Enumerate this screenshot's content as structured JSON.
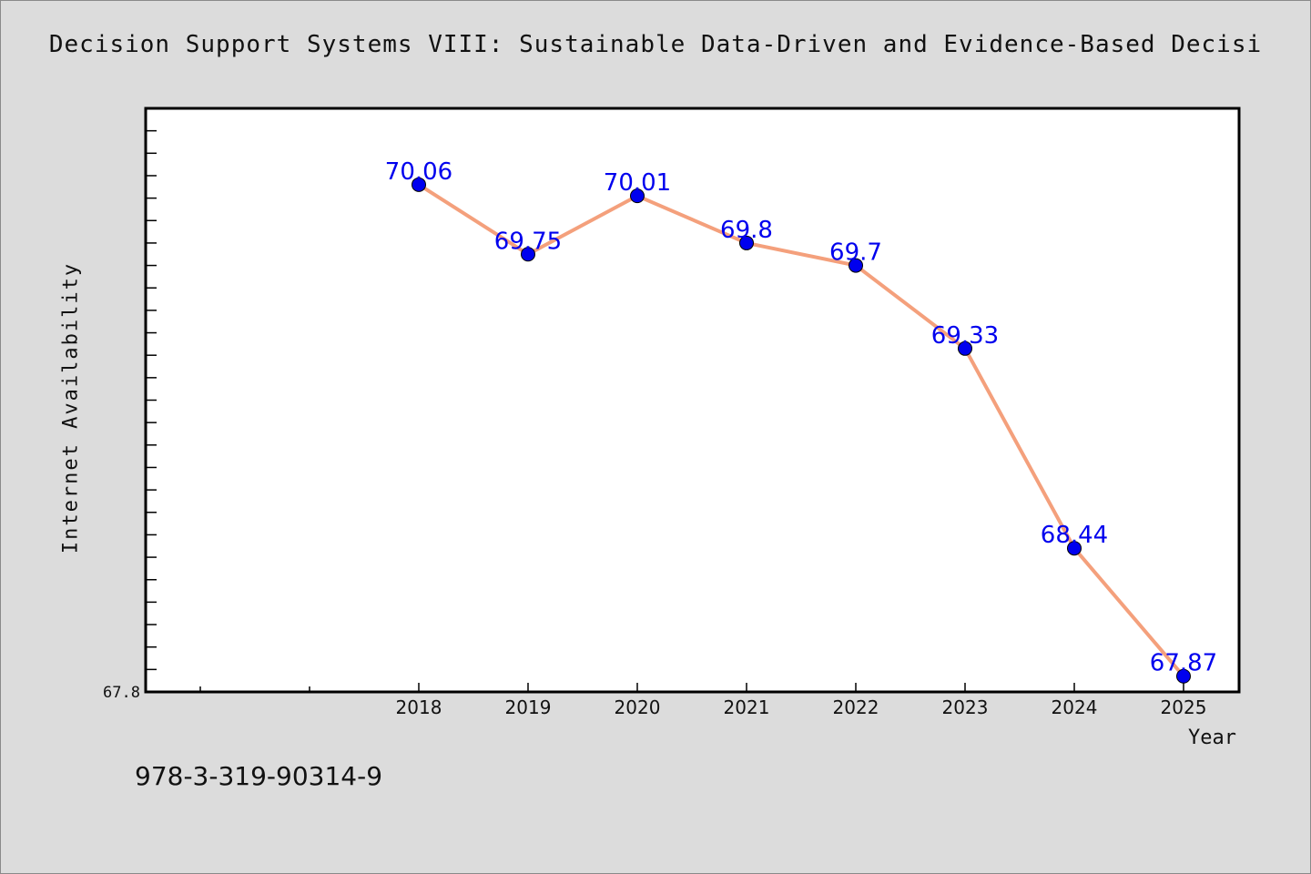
{
  "chart_data": {
    "type": "line",
    "title": "Decision Support Systems VIII: Sustainable Data-Driven and Evidence-Based Decisi",
    "xlabel": "Year",
    "ylabel": "Internet Availability",
    "x": [
      "2018",
      "2019",
      "2020",
      "2021",
      "2022",
      "2023",
      "2024",
      "2025"
    ],
    "series": [
      {
        "values": [
          70.06,
          69.75,
          70.01,
          69.8,
          69.7,
          69.33,
          68.44,
          67.87
        ]
      }
    ],
    "data_labels": [
      "70.06",
      "69.75",
      "70.01",
      "69.8",
      "69.7",
      "69.33",
      "68.44",
      "67.87"
    ],
    "y_tick_labels": [
      "67.8"
    ],
    "ylim": [
      67.8,
      70.4
    ],
    "grid": false,
    "colors": {
      "line": "#f4a07c",
      "marker": "#0000ee",
      "label": "#0000ee",
      "background": "#dcdcdc",
      "plot_background": "#ffffff"
    }
  },
  "footer": {
    "isbn": "978-3-319-90314-9"
  }
}
